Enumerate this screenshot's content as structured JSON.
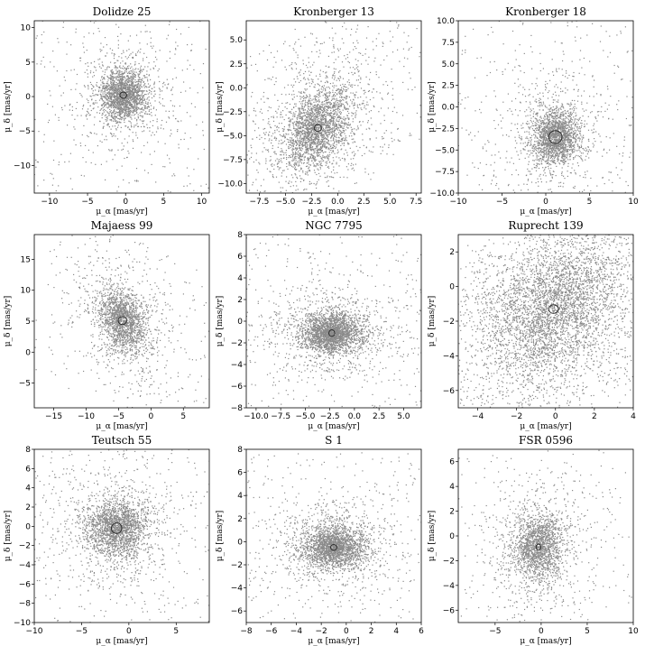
{
  "colors": {
    "points": "#8a8a8a",
    "frame": "#000000",
    "circle": "#222222",
    "background": "#ffffff"
  },
  "chart_data": [
    {
      "type": "scatter",
      "title": "Dolidze 25",
      "xlabel": "μ_α [mas/yr]",
      "ylabel": "μ_δ [mas/yr]",
      "xlim": [
        -12,
        11
      ],
      "ylim": [
        -14,
        11
      ],
      "xticks": [
        -10,
        -5,
        0,
        5,
        10
      ],
      "xtick_labels": [
        "−10",
        "−5",
        "0",
        "5",
        "10"
      ],
      "yticks": [
        -10,
        -5,
        0,
        5,
        10
      ],
      "ytick_labels": [
        "−10",
        "−5",
        "0",
        "5",
        "10"
      ],
      "center": [
        -0.3,
        0.2
      ],
      "circle_radius": 0.45,
      "spread": [
        1.5,
        1.8
      ],
      "n_points": 2400,
      "seed": 11
    },
    {
      "type": "scatter",
      "title": "Kronberger 13",
      "xlabel": "μ_α [mas/yr]",
      "ylabel": "μ_δ [mas/yr]",
      "xlim": [
        -8.75,
        8
      ],
      "ylim": [
        -11,
        7
      ],
      "xticks": [
        -7.5,
        -5,
        -2.5,
        0,
        2.5,
        5,
        7.5
      ],
      "xtick_labels": [
        "−7.5",
        "−5.0",
        "−2.5",
        "0.0",
        "2.5",
        "5.0",
        "7.5"
      ],
      "yticks": [
        -10,
        -7.5,
        -5,
        -2.5,
        0,
        2.5,
        5
      ],
      "ytick_labels": [
        "−10.0",
        "−7.5",
        "−5.0",
        "−2.5",
        "0.0",
        "2.5",
        "5.0"
      ],
      "center": [
        -1.9,
        -4.2
      ],
      "circle_radius": 0.35,
      "spread": [
        1.6,
        1.9
      ],
      "n_points": 3000,
      "seed": 12
    },
    {
      "type": "scatter",
      "title": "Kronberger 18",
      "xlabel": "μ_α [mas/yr]",
      "ylabel": "μ_δ [mas/yr]",
      "xlim": [
        -10,
        10
      ],
      "ylim": [
        -10,
        10
      ],
      "xticks": [
        -10,
        -5,
        0,
        5,
        10
      ],
      "xtick_labels": [
        "−10",
        "−5",
        "0",
        "5",
        "10"
      ],
      "yticks": [
        -10,
        -7.5,
        -5,
        -2.5,
        0,
        2.5,
        5,
        7.5,
        10
      ],
      "ytick_labels": [
        "−10.0",
        "−7.5",
        "−5.0",
        "−2.5",
        "0.0",
        "2.5",
        "5.0",
        "7.5",
        "10.0"
      ],
      "center": [
        1.1,
        -3.5
      ],
      "circle_radius": 0.75,
      "spread": [
        1.3,
        1.5
      ],
      "n_points": 2400,
      "seed": 13
    },
    {
      "type": "scatter",
      "title": "Majaess 99",
      "xlabel": "μ_α [mas/yr]",
      "ylabel": "μ_δ [mas/yr]",
      "xlim": [
        -18,
        9
      ],
      "ylim": [
        -9,
        19
      ],
      "xticks": [
        -15,
        -10,
        -5,
        0,
        5
      ],
      "xtick_labels": [
        "−15",
        "−10",
        "−5",
        "0",
        "5"
      ],
      "yticks": [
        -5,
        0,
        5,
        10,
        15
      ],
      "ytick_labels": [
        "−5",
        "0",
        "5",
        "10",
        "15"
      ],
      "center": [
        -4.4,
        5.1
      ],
      "circle_radius": 0.65,
      "spread": [
        1.8,
        2.4
      ],
      "n_points": 2200,
      "seed": 14
    },
    {
      "type": "scatter",
      "title": "NGC 7795",
      "xlabel": "μ_α [mas/yr]",
      "ylabel": "μ_δ [mas/yr]",
      "xlim": [
        -11,
        6.8
      ],
      "ylim": [
        -8,
        8
      ],
      "xticks": [
        -10,
        -7.5,
        -5,
        -2.5,
        0,
        2.5,
        5
      ],
      "xtick_labels": [
        "−10.0",
        "−7.5",
        "−5.0",
        "−2.5",
        "0.0",
        "2.5",
        "5.0"
      ],
      "yticks": [
        -8,
        -6,
        -4,
        -2,
        0,
        2,
        4,
        6,
        8
      ],
      "ytick_labels": [
        "−8",
        "−6",
        "−4",
        "−2",
        "0",
        "2",
        "4",
        "6",
        "8"
      ],
      "center": [
        -2.3,
        -1.1
      ],
      "circle_radius": 0.3,
      "spread": [
        1.5,
        0.9
      ],
      "n_points": 3000,
      "seed": 15
    },
    {
      "type": "scatter",
      "title": "Ruprecht 139",
      "xlabel": "μ_α [mas/yr]",
      "ylabel": "μ_δ [mas/yr]",
      "xlim": [
        -5,
        4
      ],
      "ylim": [
        -7,
        3
      ],
      "xticks": [
        -4,
        -2,
        0,
        2,
        4
      ],
      "xtick_labels": [
        "−4",
        "−2",
        "0",
        "2",
        "4"
      ],
      "yticks": [
        -6,
        -4,
        -2,
        0,
        2
      ],
      "ytick_labels": [
        "−6",
        "−4",
        "−2",
        "0",
        "2"
      ],
      "center": [
        -0.1,
        -1.3
      ],
      "circle_radius": 0.25,
      "spread": [
        1.8,
        2.0
      ],
      "n_points": 5200,
      "seed": 16
    },
    {
      "type": "scatter",
      "title": "Teutsch 55",
      "xlabel": "μ_α [mas/yr]",
      "ylabel": "μ_δ [mas/yr]",
      "xlim": [
        -10,
        8.5
      ],
      "ylim": [
        -10,
        8
      ],
      "xticks": [
        -10,
        -5,
        0,
        5
      ],
      "xtick_labels": [
        "−10",
        "−5",
        "0",
        "5"
      ],
      "yticks": [
        -10,
        -8,
        -6,
        -4,
        -2,
        0,
        2,
        4,
        6,
        8
      ],
      "ytick_labels": [
        "−10",
        "−8",
        "−6",
        "−4",
        "−2",
        "0",
        "2",
        "4",
        "6",
        "8"
      ],
      "center": [
        -1.3,
        -0.2
      ],
      "circle_radius": 0.55,
      "spread": [
        1.6,
        1.5
      ],
      "n_points": 2600,
      "seed": 17
    },
    {
      "type": "scatter",
      "title": "S 1",
      "xlabel": "μ_α [mas/yr]",
      "ylabel": "μ_δ [mas/yr]",
      "xlim": [
        -8,
        6
      ],
      "ylim": [
        -7,
        8
      ],
      "xticks": [
        -8,
        -6,
        -4,
        -2,
        0,
        2,
        4,
        6
      ],
      "xtick_labels": [
        "−8",
        "−6",
        "−4",
        "−2",
        "0",
        "2",
        "4",
        "6"
      ],
      "yticks": [
        -6,
        -4,
        -2,
        0,
        2,
        4,
        6,
        8
      ],
      "ytick_labels": [
        "−6",
        "−4",
        "−2",
        "0",
        "2",
        "4",
        "6",
        "8"
      ],
      "center": [
        -1.0,
        -0.5
      ],
      "circle_radius": 0.25,
      "spread": [
        1.2,
        0.9
      ],
      "n_points": 2800,
      "seed": 18
    },
    {
      "type": "scatter",
      "title": "FSR 0596",
      "xlabel": "μ_α [mas/yr]",
      "ylabel": "μ_δ [mas/yr]",
      "xlim": [
        -9,
        10
      ],
      "ylim": [
        -7,
        7
      ],
      "xticks": [
        -5,
        0,
        5,
        10
      ],
      "xtick_labels": [
        "−5",
        "0",
        "5",
        "10"
      ],
      "yticks": [
        -6,
        -4,
        -2,
        0,
        2,
        4,
        6
      ],
      "ytick_labels": [
        "−6",
        "−4",
        "−2",
        "0",
        "2",
        "4",
        "6"
      ],
      "center": [
        -0.3,
        -0.9
      ],
      "circle_radius": 0.25,
      "spread": [
        1.4,
        1.3
      ],
      "n_points": 2200,
      "seed": 19
    }
  ]
}
